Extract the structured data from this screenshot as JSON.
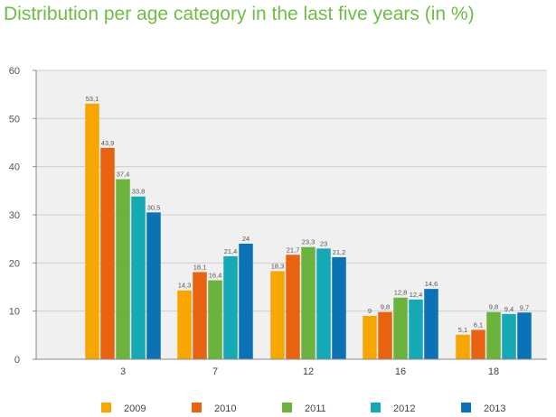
{
  "chart_data": {
    "type": "bar",
    "title": "Distribution per age category in the last five years (in %)",
    "xlabel": "",
    "ylabel": "",
    "ylim": [
      0,
      60
    ],
    "yticks": [
      0,
      10,
      20,
      30,
      40,
      50,
      60
    ],
    "grid": true,
    "legend_position": "bottom",
    "categories": [
      "3",
      "7",
      "12",
      "16",
      "18"
    ],
    "series": [
      {
        "name": "2009",
        "color": "#f7a600",
        "values": [
          53.1,
          14.3,
          18.3,
          9,
          5.1
        ],
        "labels": [
          "53,1",
          "14,3",
          "18,3",
          "9",
          "5,1"
        ]
      },
      {
        "name": "2010",
        "color": "#e8620f",
        "values": [
          43.9,
          18.1,
          21.7,
          9.8,
          6.1
        ],
        "labels": [
          "43,9",
          "18,1",
          "21,7",
          "9,8",
          "6,1"
        ]
      },
      {
        "name": "2011",
        "color": "#6cb33e",
        "values": [
          37.4,
          16.4,
          23.3,
          12.8,
          9.8
        ],
        "labels": [
          "37,4",
          "16,4",
          "23,3",
          "12,8",
          "9,8"
        ]
      },
      {
        "name": "2012",
        "color": "#15a8b5",
        "values": [
          33.8,
          21.4,
          23,
          12.4,
          9.4
        ],
        "labels": [
          "33,8",
          "21,4",
          "23",
          "12,4",
          "9,4"
        ]
      },
      {
        "name": "2013",
        "color": "#0a72b5",
        "values": [
          30.5,
          24,
          21.2,
          14.6,
          9.7
        ],
        "labels": [
          "30,5",
          "24",
          "21,2",
          "14,6",
          "9,7"
        ]
      }
    ]
  }
}
